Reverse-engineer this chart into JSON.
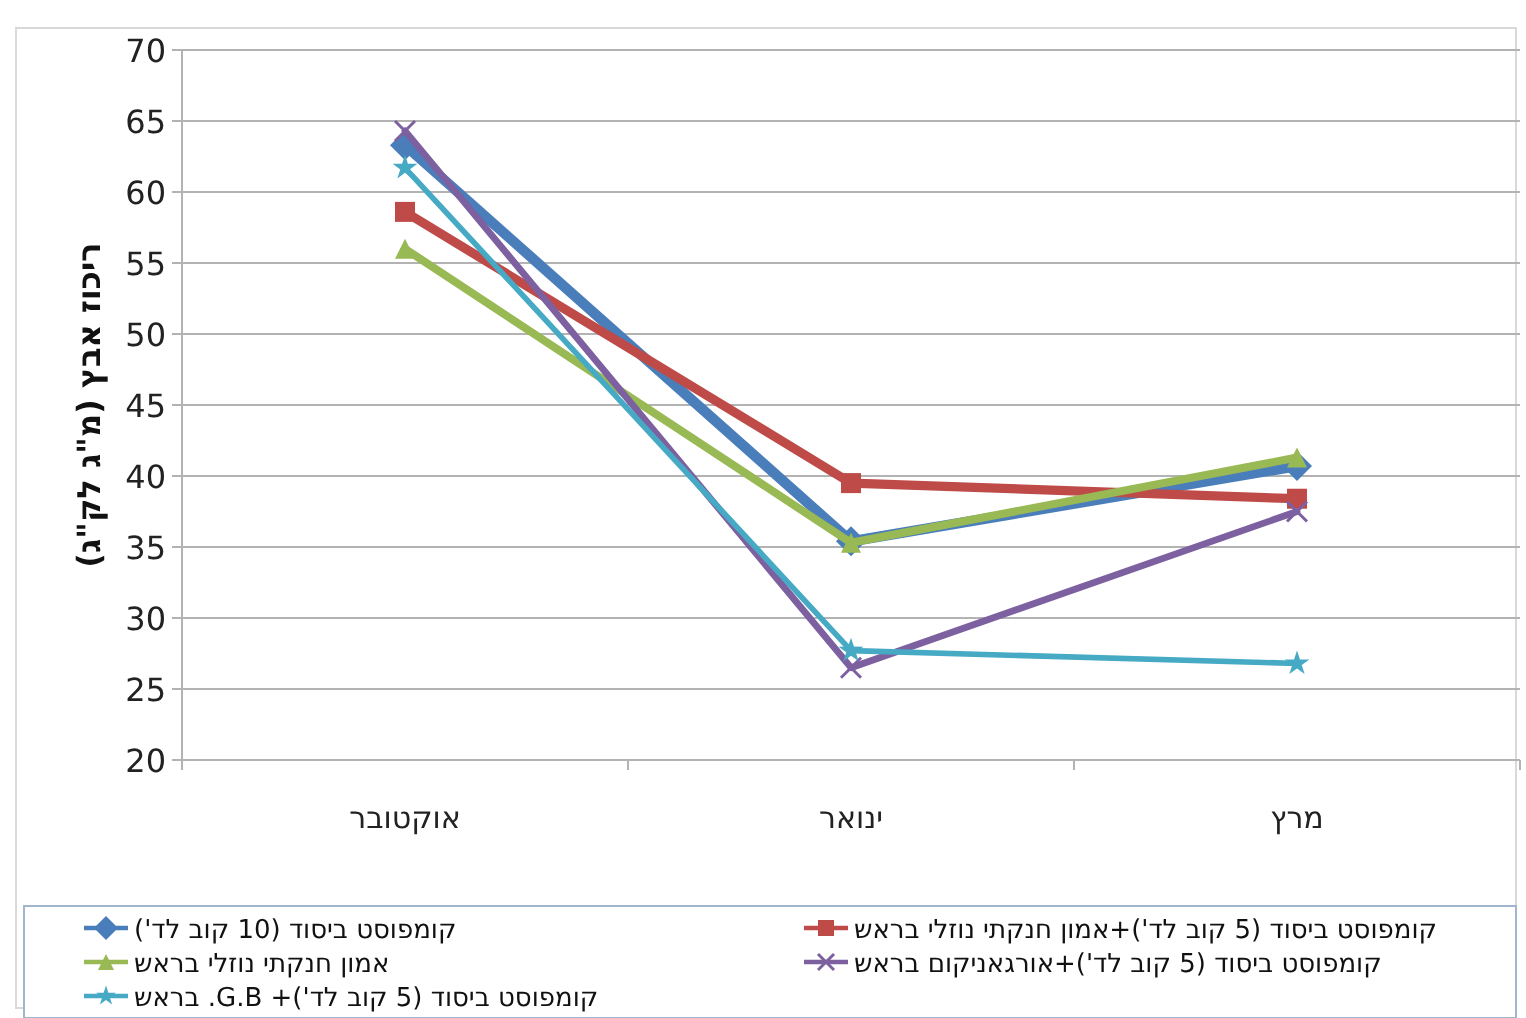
{
  "chart_data": {
    "type": "line",
    "ylabel": "ריכוז אבץ (מ\"ג לק\"ג)",
    "categories": [
      "אוקטובר",
      "ינואר",
      "מרץ"
    ],
    "ylim": [
      20,
      70
    ],
    "yticks": [
      20,
      25,
      30,
      35,
      40,
      45,
      50,
      55,
      60,
      65,
      70
    ],
    "grid": "y",
    "legend": "bottom",
    "series": [
      {
        "name": "קומפוסט ביסוד (10 קוב לד')",
        "color": "#4a7ebb",
        "marker": "diamond",
        "values": [
          63.3,
          35.4,
          40.7
        ]
      },
      {
        "name": "קומפוסט ביסוד (5 קוב לד')+אמון חנקתי נוזלי בראש",
        "color": "#be4b48",
        "marker": "square",
        "values": [
          58.6,
          39.5,
          38.4
        ]
      },
      {
        "name": "אמון חנקתי נוזלי בראש",
        "color": "#98b954",
        "marker": "triangle",
        "values": [
          56.0,
          35.3,
          41.3
        ]
      },
      {
        "name": "קומפוסט ביסוד (5 קוב לד')+אורגאניקום בראש",
        "color": "#7d60a0",
        "marker": "cross",
        "values": [
          64.3,
          26.5,
          37.5
        ]
      },
      {
        "name": "קומפוסט ביסוד (5 קוב לד')+ G.B. בראש",
        "color": "#46aac5",
        "marker": "star",
        "values": [
          61.7,
          27.7,
          26.8
        ]
      }
    ]
  }
}
